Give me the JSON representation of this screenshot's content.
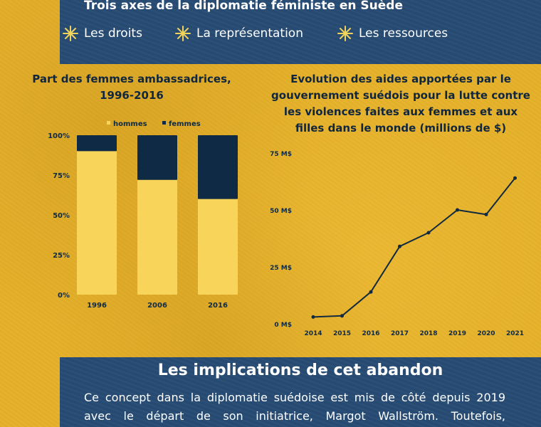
{
  "header": {
    "title": "Trois axes de la diplomatie féministe en Suède",
    "axes": [
      {
        "label": "Les droits",
        "icon": "sparkle-icon"
      },
      {
        "label": "La représentation",
        "icon": "sparkle-icon"
      },
      {
        "label": "Les ressources",
        "icon": "sparkle-icon"
      }
    ]
  },
  "colors": {
    "background": "#e6b22c",
    "navy": "#264a72",
    "dark": "#0e2a45",
    "cream_bar": "#f8d45a",
    "star": "#f1d25a",
    "line": "#122a3f"
  },
  "chart_data": [
    {
      "type": "bar",
      "stacked": true,
      "title": "Part des femmes ambassadrices, 1996-2016",
      "title_lines": [
        "Part des femmes ambassadrices,",
        "1996-2016"
      ],
      "categories": [
        "1996",
        "2006",
        "2016"
      ],
      "series": [
        {
          "name": "hommes",
          "values": [
            90,
            72,
            60
          ]
        },
        {
          "name": "femmes",
          "values": [
            10,
            28,
            40
          ]
        }
      ],
      "ylim": [
        0,
        100
      ],
      "yticks": [
        "0%",
        "25%",
        "50%",
        "75%",
        "100%"
      ],
      "legend": "top",
      "grid": false
    },
    {
      "type": "line",
      "title": "Evolution des aides apportées par le gouvernement suédois pour la lutte contre les violences faites aux femmes et aux filles dans le monde (millions de $)",
      "title_lines": [
        "Evolution des aides apportées par le",
        "gouvernement suédois pour la lutte contre",
        "les violences faites aux femmes et aux",
        "filles dans le monde (millions de $)"
      ],
      "x": [
        "2014",
        "2015",
        "2016",
        "2017",
        "2018",
        "2019",
        "2020",
        "2021"
      ],
      "y": [
        3,
        3.5,
        14,
        34,
        40,
        50,
        48,
        64
      ],
      "ylim": [
        0,
        75
      ],
      "yticks": [
        "0 M$",
        "25 M$",
        "50 M$",
        "75 M$"
      ],
      "grid": false
    }
  ],
  "bottom": {
    "title": "Les implications de cet abandon",
    "text": "Ce concept dans la diplomatie suédoise est mis de côté depuis 2019 avec le départ de son initiatrice, Margot Wallström. Toutefois,"
  }
}
